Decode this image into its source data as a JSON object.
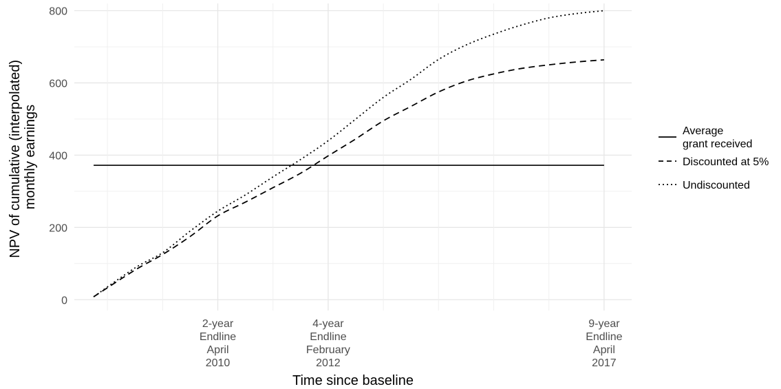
{
  "chart_data": {
    "type": "line",
    "title": "",
    "xlabel": "Time since baseline",
    "ylabel_lines": [
      "NPV of cumulative (interpolated)",
      "monthly earnings"
    ],
    "x_unit": "years since baseline",
    "xlim": [
      -0.6,
      9.5
    ],
    "ylim": [
      -30,
      820
    ],
    "y_ticks": [
      0,
      200,
      400,
      600,
      800
    ],
    "x_ticks": [
      {
        "x": 2,
        "lines": [
          "2-year",
          "Endline",
          "April",
          "2010"
        ]
      },
      {
        "x": 4,
        "lines": [
          "4-year",
          "Endline",
          "February",
          "2012"
        ]
      },
      {
        "x": 9,
        "lines": [
          "9-year",
          "Endline",
          "April",
          "2017"
        ]
      }
    ],
    "x_gridlines": [
      0,
      1,
      2,
      3,
      4,
      5,
      6,
      7,
      8,
      9
    ],
    "grid": true,
    "legend_position": "right",
    "series": [
      {
        "name": "Average grant received",
        "style": "solid",
        "x": [
          -0.25,
          9
        ],
        "y": [
          372,
          372
        ]
      },
      {
        "name": "Discounted at 5%",
        "style": "dashed",
        "x": [
          -0.25,
          0.5,
          1,
          1.5,
          2,
          2.5,
          3,
          3.5,
          4,
          4.5,
          5,
          5.5,
          6,
          6.5,
          7,
          7.5,
          8,
          8.5,
          9
        ],
        "y": [
          8,
          82,
          125,
          175,
          232,
          270,
          310,
          350,
          398,
          445,
          495,
          535,
          575,
          605,
          625,
          640,
          650,
          658,
          664
        ]
      },
      {
        "name": "Undiscounted",
        "style": "dotted",
        "x": [
          -0.25,
          0.5,
          1,
          1.5,
          2,
          2.5,
          3,
          3.5,
          4,
          4.5,
          5,
          5.5,
          6,
          6.5,
          7,
          7.5,
          8,
          8.5,
          9
        ],
        "y": [
          8,
          88,
          130,
          190,
          245,
          290,
          340,
          388,
          440,
          500,
          560,
          610,
          665,
          705,
          735,
          760,
          780,
          792,
          800
        ]
      }
    ]
  }
}
